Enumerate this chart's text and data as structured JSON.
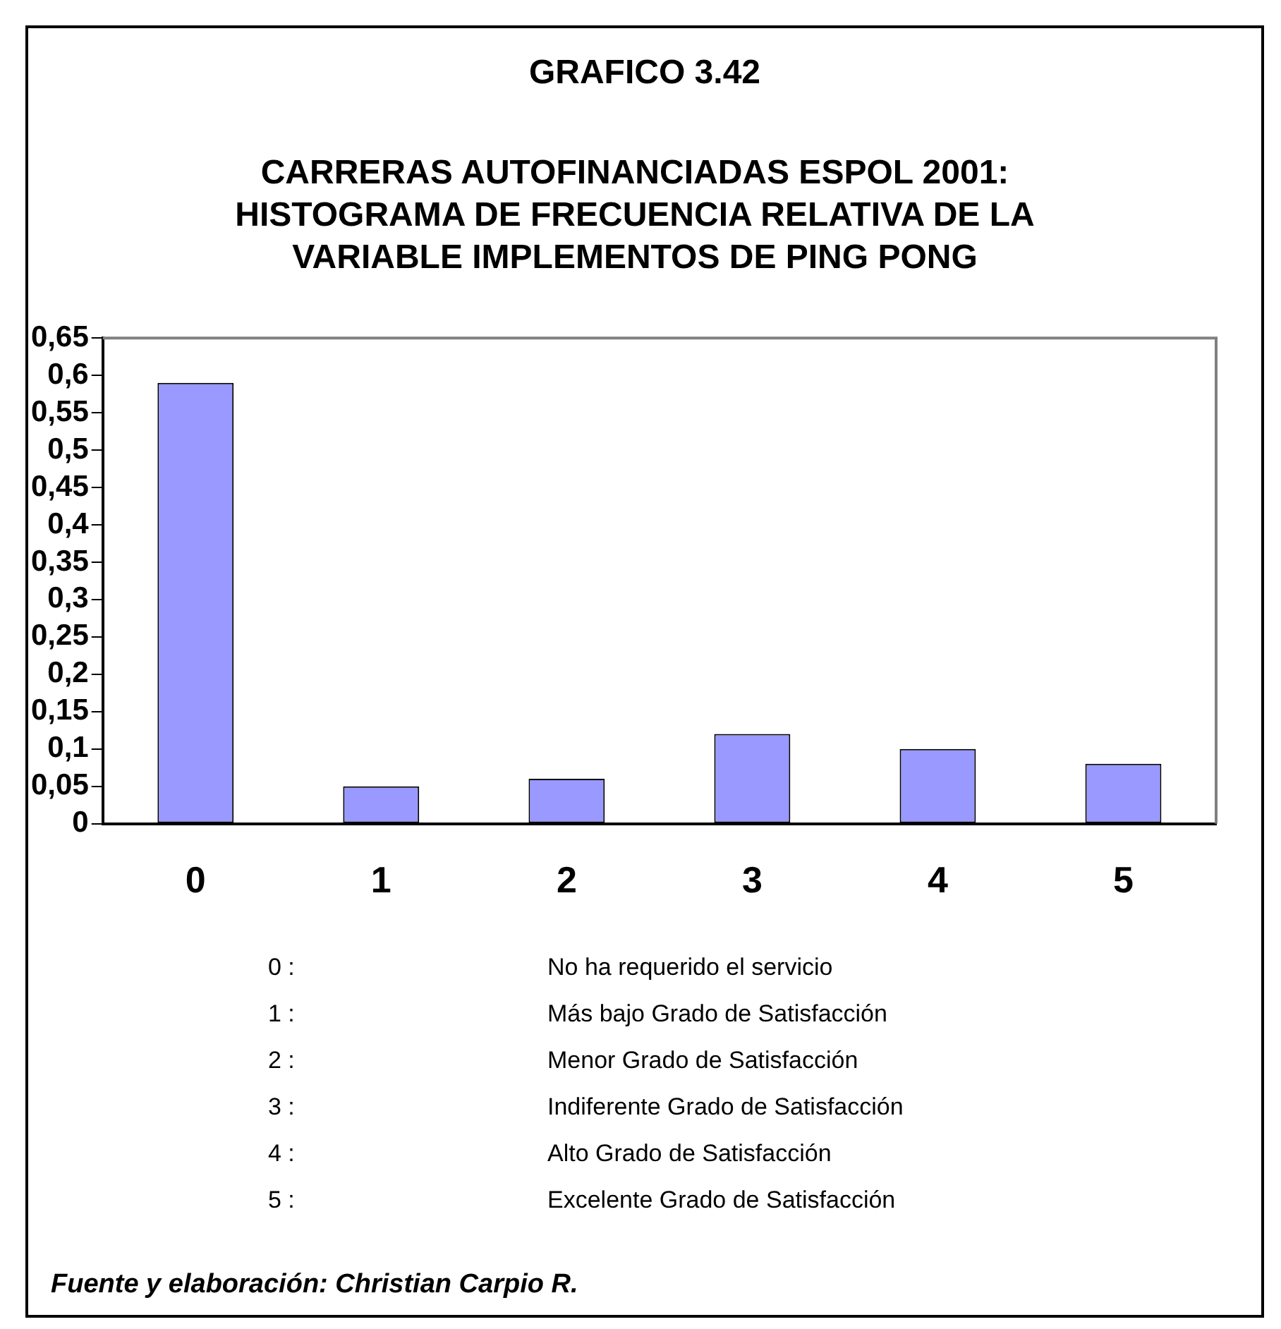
{
  "chart_data": {
    "type": "bar",
    "title": "GRAFICO 3.42",
    "subtitle": "CARRERAS AUTOFINANCIADAS ESPOL 2001: HISTOGRAMA DE FRECUENCIA RELATIVA DE LA VARIABLE  IMPLEMENTOS DE PING PONG",
    "categories": [
      "0",
      "1",
      "2",
      "3",
      "4",
      "5"
    ],
    "values": [
      0.59,
      0.05,
      0.06,
      0.12,
      0.1,
      0.08
    ],
    "color": "#9999ff",
    "ylim": [
      0,
      0.65
    ],
    "yticks": [
      0,
      {
        "value": 0.05,
        "label": "0,05"
      },
      {
        "value": 0.1,
        "label": "0,1"
      },
      {
        "value": 0.15,
        "label": "0,15"
      },
      {
        "value": 0.2,
        "label": "0,2"
      },
      {
        "value": 0.25,
        "label": "0,25"
      },
      {
        "value": 0.3,
        "label": "0,3"
      },
      {
        "value": 0.35,
        "label": "0,35"
      },
      {
        "value": 0.4,
        "label": "0,4"
      },
      {
        "value": 0.45,
        "label": "0,45"
      },
      {
        "value": 0.5,
        "label": "0,5"
      },
      {
        "value": 0.55,
        "label": "0,55"
      },
      {
        "value": 0.6,
        "label": "0,6"
      },
      {
        "value": 0.65,
        "label": "0,65"
      }
    ],
    "grid": false,
    "legend": false,
    "annotations": [
      "0 : No ha requerido el servicio",
      "1 : Más bajo Grado de Satisfacción",
      "2 : Menor Grado de Satisfacción",
      "3 : Indiferente Grado de Satisfacción",
      "4 : Alto Grado de Satisfacción",
      "5 : Excelente Grado de Satisfacción",
      "Fuente y elaboración: Christian Carpio R."
    ]
  }
}
